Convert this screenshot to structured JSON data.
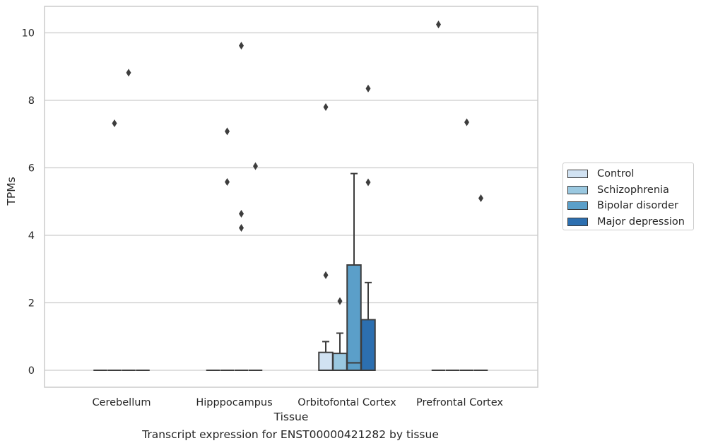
{
  "chart_data": {
    "type": "box",
    "title": "Transcript expression for ENST00000421282 by tissue",
    "xlabel": "Tissue",
    "ylabel": "TPMs",
    "ylim": [
      -0.5,
      10.8
    ],
    "yticks": [
      0,
      2,
      4,
      6,
      8,
      10
    ],
    "grid": "horizontal",
    "legend_position": "right",
    "categories": [
      "Cerebellum",
      "Hipppocampus",
      "Orbitofontal Cortex",
      "Prefrontal Cortex"
    ],
    "series": [
      {
        "name": "Control",
        "color": "#d1e2f2",
        "boxes": [
          {
            "q1": 0,
            "median": 0,
            "q3": 0,
            "whislo": 0,
            "whishi": 0,
            "fliers": []
          },
          {
            "q1": 0,
            "median": 0,
            "q3": 0,
            "whislo": 0,
            "whishi": 0,
            "fliers": []
          },
          {
            "q1": 0,
            "median": 0,
            "q3": 0.53,
            "whislo": 0,
            "whishi": 0.85,
            "fliers": [
              7.8,
              2.82
            ]
          },
          {
            "q1": 0,
            "median": 0,
            "q3": 0,
            "whislo": 0,
            "whishi": 0,
            "fliers": [
              10.25
            ]
          }
        ]
      },
      {
        "name": "Schizophrenia",
        "color": "#9ac8e0",
        "boxes": [
          {
            "q1": 0,
            "median": 0,
            "q3": 0,
            "whislo": 0,
            "whishi": 0,
            "fliers": [
              7.32
            ]
          },
          {
            "q1": 0,
            "median": 0,
            "q3": 0,
            "whislo": 0,
            "whishi": 0,
            "fliers": [
              7.08,
              5.58
            ]
          },
          {
            "q1": 0,
            "median": 0,
            "q3": 0.5,
            "whislo": 0,
            "whishi": 1.1,
            "fliers": [
              2.05
            ]
          },
          {
            "q1": 0,
            "median": 0,
            "q3": 0,
            "whislo": 0,
            "whishi": 0,
            "fliers": []
          }
        ]
      },
      {
        "name": "Bipolar disorder",
        "color": "#5b9fc9",
        "boxes": [
          {
            "q1": 0,
            "median": 0,
            "q3": 0,
            "whislo": 0,
            "whishi": 0,
            "fliers": [
              8.82
            ]
          },
          {
            "q1": 0,
            "median": 0,
            "q3": 0,
            "whislo": 0,
            "whishi": 0,
            "fliers": [
              9.62,
              4.64,
              4.22
            ]
          },
          {
            "q1": 0,
            "median": 0.22,
            "q3": 3.12,
            "whislo": 0,
            "whishi": 5.83,
            "fliers": []
          },
          {
            "q1": 0,
            "median": 0,
            "q3": 0,
            "whislo": 0,
            "whishi": 0,
            "fliers": [
              7.35
            ]
          }
        ]
      },
      {
        "name": "Major depression",
        "color": "#2c6fb0",
        "boxes": [
          {
            "q1": 0,
            "median": 0,
            "q3": 0,
            "whislo": 0,
            "whishi": 0,
            "fliers": []
          },
          {
            "q1": 0,
            "median": 0,
            "q3": 0,
            "whislo": 0,
            "whishi": 0,
            "fliers": [
              6.05
            ]
          },
          {
            "q1": 0,
            "median": 0,
            "q3": 1.5,
            "whislo": 0,
            "whishi": 2.6,
            "fliers": [
              8.35,
              5.57
            ]
          },
          {
            "q1": 0,
            "median": 0,
            "q3": 0,
            "whislo": 0,
            "whishi": 0,
            "fliers": [
              5.1
            ]
          }
        ]
      }
    ]
  }
}
